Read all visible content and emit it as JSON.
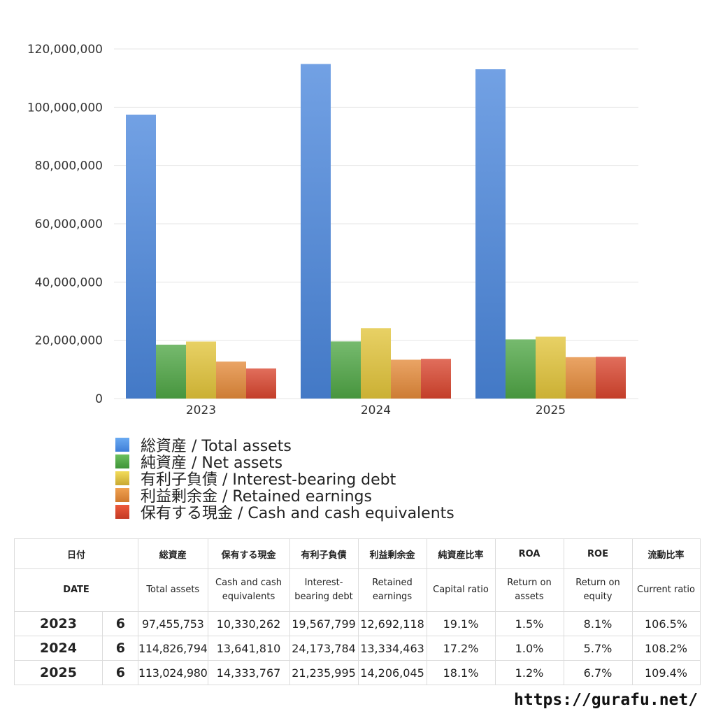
{
  "chart_data": {
    "type": "bar",
    "categories": [
      "2023",
      "2024",
      "2025"
    ],
    "series": [
      {
        "name": "総資産 / Total assets",
        "values": [
          97455753,
          114826794,
          113024980
        ],
        "color": "#4a86dc"
      },
      {
        "name": "純資産 / Net assets",
        "values": [
          18500000,
          19600000,
          20300000
        ],
        "color": "#4fa645"
      },
      {
        "name": "有利子負債 / Interest-bearing debt",
        "values": [
          19567799,
          24173784,
          21235995
        ],
        "color": "#e2c43a"
      },
      {
        "name": "利益剰余金 / Retained earnings",
        "values": [
          12692118,
          13334463,
          14206045
        ],
        "color": "#e48a3a"
      },
      {
        "name": "保有する現金 /  Cash and cash equivalents",
        "values": [
          10330262,
          13641810,
          14333767
        ],
        "color": "#d9452e"
      }
    ],
    "ylim": [
      0,
      120000000
    ],
    "yticks": [
      "0",
      "20,000,000",
      "40,000,000",
      "60,000,000",
      "80,000,000",
      "100,000,000",
      "120,000,000"
    ],
    "ytick_values": [
      0,
      20000000,
      40000000,
      60000000,
      80000000,
      100000000,
      120000000
    ],
    "grid": true,
    "legend_position": "bottom"
  },
  "table": {
    "headers_jp": [
      "日付",
      "",
      "総資産",
      "保有する現金",
      "有利子負債",
      "利益剰余金",
      "純資産比率",
      "ROA",
      "ROE",
      "流動比率"
    ],
    "headers_en": [
      "DATE",
      "",
      "Total assets",
      "Cash and cash equivalents",
      "Interest-bearing debt",
      "Retained earnings",
      "Capital ratio",
      "Return on assets",
      "Return on equity",
      "Current ratio"
    ],
    "rows": [
      {
        "year": "2023",
        "month": "6",
        "total_assets": "97,455,753",
        "cash": "10,330,262",
        "debt": "19,567,799",
        "retained": "12,692,118",
        "capital_ratio": "19.1%",
        "roa": "1.5%",
        "roe": "8.1%",
        "current_ratio": "106.5%"
      },
      {
        "year": "2024",
        "month": "6",
        "total_assets": "114,826,794",
        "cash": "13,641,810",
        "debt": "24,173,784",
        "retained": "13,334,463",
        "capital_ratio": "17.2%",
        "roa": "1.0%",
        "roe": "5.7%",
        "current_ratio": "108.2%"
      },
      {
        "year": "2025",
        "month": "6",
        "total_assets": "113,024,980",
        "cash": "14,333,767",
        "debt": "21,235,995",
        "retained": "14,206,045",
        "capital_ratio": "18.1%",
        "roa": "1.2%",
        "roe": "6.7%",
        "current_ratio": "109.4%"
      }
    ]
  },
  "footer": {
    "url": "https://gurafu.net/"
  }
}
